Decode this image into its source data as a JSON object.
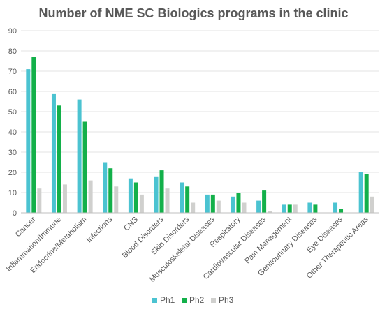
{
  "chart_data": {
    "type": "bar",
    "title": "Number of NME SC Biologics programs in the clinic",
    "xlabel": "",
    "ylabel": "",
    "ylim": [
      0,
      90
    ],
    "yticks": [
      0,
      10,
      20,
      30,
      40,
      50,
      60,
      70,
      80,
      90
    ],
    "grid": true,
    "legend_position": "bottom",
    "categories": [
      "Cancer",
      "Inflammation/Immune",
      "Endocrine/Metabolism",
      "Infections",
      "CNS",
      "Blood Disorders",
      "Skin Disorders",
      "Musculoskeletal Diseases",
      "Respiratory",
      "Cardiovascular Diseases",
      "Pain Management",
      "Genitourinary Diseases",
      "Eye Diseases",
      "Other Therapeutic Areas"
    ],
    "series": [
      {
        "name": "Ph1",
        "color": "#4BC3D1",
        "values": [
          71,
          59,
          56,
          25,
          17,
          18,
          15,
          9,
          8,
          6,
          4,
          5,
          5,
          20
        ]
      },
      {
        "name": "Ph2",
        "color": "#13B04A",
        "values": [
          77,
          53,
          45,
          22,
          15,
          21,
          13,
          9,
          10,
          11,
          4,
          4,
          2,
          19
        ]
      },
      {
        "name": "Ph3",
        "color": "#D0D0CE",
        "values": [
          12,
          14,
          16,
          13,
          9,
          12,
          5,
          6,
          5,
          1,
          4,
          0,
          0,
          8
        ]
      }
    ]
  }
}
